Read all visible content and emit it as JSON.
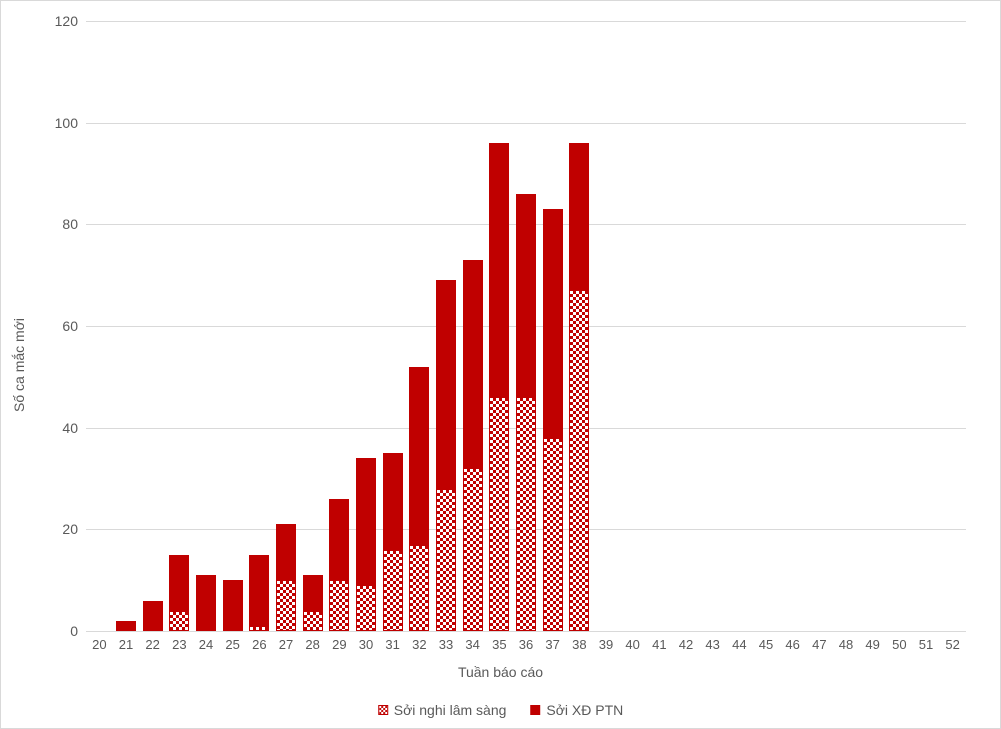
{
  "chart": {
    "type": "stacked-bar",
    "background_color": "#ffffff",
    "border_color": "#d9d9d9",
    "y_axis": {
      "title": "Số ca mắc mới",
      "min": 0,
      "max": 120,
      "tick_step": 20,
      "label_fontsize": 14,
      "label_color": "#595959",
      "grid_color": "#d9d9d9"
    },
    "x_axis": {
      "title": "Tuần báo cáo",
      "categories": [
        20,
        21,
        22,
        23,
        24,
        25,
        26,
        27,
        28,
        29,
        30,
        31,
        32,
        33,
        34,
        35,
        36,
        37,
        38,
        39,
        40,
        41,
        42,
        43,
        44,
        45,
        46,
        47,
        48,
        49,
        50,
        51,
        52
      ],
      "label_fontsize": 13,
      "label_color": "#595959"
    },
    "series": [
      {
        "name": "Sởi nghi lâm sàng",
        "style": "pattern",
        "color": "#c00000",
        "values": [
          0,
          0,
          0,
          4,
          0,
          0,
          1,
          10,
          4,
          10,
          9,
          16,
          17,
          28,
          32,
          46,
          46,
          38,
          67,
          0,
          0,
          0,
          0,
          0,
          0,
          0,
          0,
          0,
          0,
          0,
          0,
          0,
          0
        ]
      },
      {
        "name": "Sởi XĐ PTN",
        "style": "solid",
        "color": "#c00000",
        "values": [
          0,
          2,
          6,
          11,
          11,
          10,
          14,
          11,
          7,
          16,
          25,
          19,
          35,
          41,
          41,
          50,
          40,
          45,
          29,
          0,
          0,
          0,
          0,
          0,
          0,
          0,
          0,
          0,
          0,
          0,
          0,
          0,
          0
        ]
      }
    ],
    "legend": {
      "position": "bottom",
      "items": [
        {
          "label": "Sởi nghi lâm sàng",
          "swatch": "pattern"
        },
        {
          "label": "Sởi XĐ PTN",
          "swatch": "solid"
        }
      ]
    },
    "bar_gap_ratio": 0.25
  }
}
